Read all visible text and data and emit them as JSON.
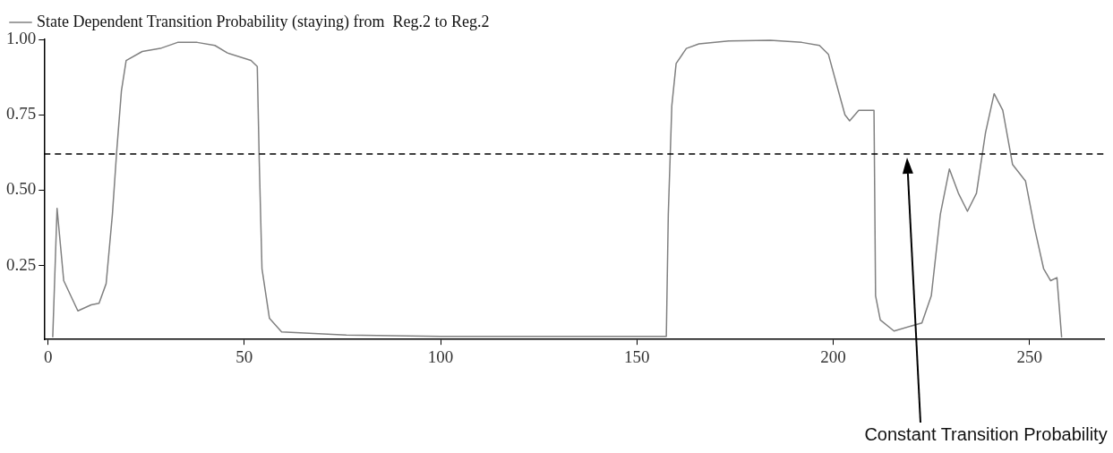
{
  "chart_data": {
    "type": "line",
    "x": [
      1.2,
      2.3,
      4,
      7.6,
      11,
      13,
      14.8,
      16.4,
      17.5,
      18.7,
      19.9,
      24,
      28.6,
      33,
      38,
      42.5,
      45.7,
      51.7,
      53.3,
      53.8,
      54.5,
      56.4,
      59.5,
      76,
      100,
      130,
      157.5,
      158,
      158.9,
      160,
      162.6,
      165.8,
      173.4,
      184,
      192,
      196.5,
      198.8,
      201,
      203,
      204.2,
      206.5,
      210.4,
      210.8,
      212,
      215.5,
      222.6,
      225,
      227.3,
      229.6,
      231.9,
      234.2,
      236.5,
      238.8,
      241,
      243.2,
      245.7,
      249,
      251.3,
      253.6,
      255.4,
      257,
      258.2
    ],
    "series": [
      {
        "name": "State Dependent Transition Probability (staying) from  Reg.2 to Reg.2",
        "color": "#808080",
        "values": [
          0.012,
          0.44,
          0.2,
          0.1,
          0.12,
          0.125,
          0.19,
          0.42,
          0.63,
          0.83,
          0.93,
          0.96,
          0.97,
          0.99,
          0.99,
          0.98,
          0.955,
          0.93,
          0.91,
          0.6,
          0.24,
          0.075,
          0.03,
          0.02,
          0.015,
          0.015,
          0.015,
          0.42,
          0.78,
          0.92,
          0.97,
          0.985,
          0.995,
          0.997,
          0.99,
          0.98,
          0.95,
          0.845,
          0.75,
          0.73,
          0.765,
          0.765,
          0.15,
          0.07,
          0.033,
          0.06,
          0.15,
          0.42,
          0.57,
          0.49,
          0.43,
          0.49,
          0.69,
          0.82,
          0.765,
          0.585,
          0.53,
          0.375,
          0.24,
          0.2,
          0.21,
          0.012
        ]
      }
    ],
    "xlim": [
      -1,
      269
    ],
    "ylim": [
      0.005,
      1.0
    ],
    "xticks": [
      0,
      50,
      100,
      150,
      200,
      250
    ],
    "yticks": [
      0.25,
      {
        "value": 0.5,
        "label": "0.50"
      },
      0.75,
      {
        "value": 1.0,
        "label": "1.00"
      }
    ],
    "ref_lines": [
      {
        "axis": "y",
        "value": 0.62,
        "line_style": "dashed",
        "color": "#000000"
      }
    ],
    "annotations": [
      "Constant Transition Probability"
    ],
    "grid": false,
    "legend": "top left",
    "marker": "none",
    "line_style": "solid"
  }
}
